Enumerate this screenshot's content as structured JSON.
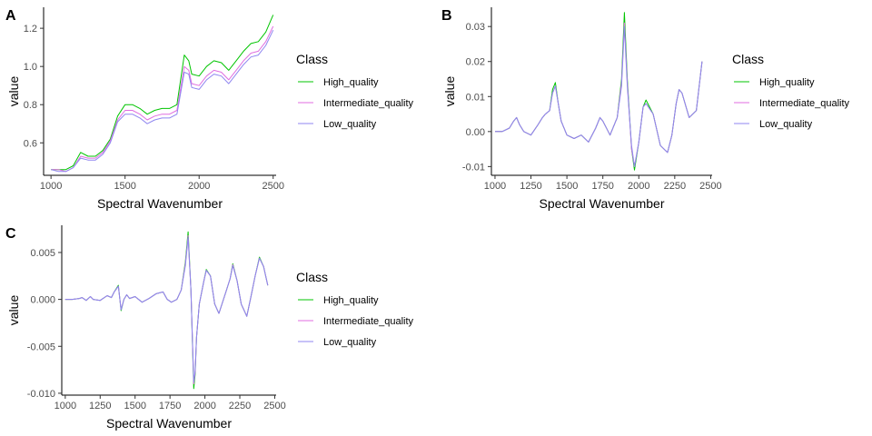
{
  "legend": {
    "title": "Class",
    "entries": [
      "High_quality",
      "Intermediate_quality",
      "Low_quality"
    ]
  },
  "colors": {
    "High_quality": "#00c400",
    "Intermediate_quality": "#e06ee0",
    "Low_quality": "#8f86f0"
  },
  "chart_data": [
    {
      "panel": "A",
      "type": "line",
      "xlabel": "Spectral Wavenumber",
      "ylabel": "value",
      "xlim": [
        950,
        2520
      ],
      "ylim": [
        0.43,
        1.31
      ],
      "xticks": [
        1000,
        1500,
        2000,
        2500
      ],
      "yticks": [
        0.6,
        0.8,
        1.0,
        1.2
      ],
      "ytick_labels": [
        "0.6",
        "0.8",
        "1.0",
        "1.2"
      ],
      "grid": false,
      "legend_position": "right",
      "series": [
        {
          "name": "High_quality",
          "x": [
            1000,
            1050,
            1100,
            1150,
            1200,
            1250,
            1300,
            1350,
            1400,
            1450,
            1500,
            1550,
            1600,
            1650,
            1700,
            1750,
            1800,
            1850,
            1900,
            1930,
            1950,
            2000,
            2050,
            2100,
            2150,
            2200,
            2250,
            2300,
            2350,
            2400,
            2450,
            2500
          ],
          "y": [
            0.46,
            0.46,
            0.46,
            0.48,
            0.55,
            0.53,
            0.53,
            0.56,
            0.62,
            0.74,
            0.8,
            0.8,
            0.78,
            0.75,
            0.77,
            0.78,
            0.78,
            0.8,
            1.06,
            1.03,
            0.96,
            0.95,
            1.0,
            1.03,
            1.02,
            0.98,
            1.03,
            1.08,
            1.12,
            1.13,
            1.18,
            1.27
          ]
        },
        {
          "name": "Intermediate_quality",
          "x": [
            1000,
            1050,
            1100,
            1150,
            1200,
            1250,
            1300,
            1350,
            1400,
            1450,
            1500,
            1550,
            1600,
            1650,
            1700,
            1750,
            1800,
            1850,
            1900,
            1930,
            1950,
            2000,
            2050,
            2100,
            2150,
            2200,
            2250,
            2300,
            2350,
            2400,
            2450,
            2500
          ],
          "y": [
            0.46,
            0.46,
            0.45,
            0.47,
            0.53,
            0.52,
            0.52,
            0.55,
            0.61,
            0.72,
            0.77,
            0.77,
            0.75,
            0.72,
            0.74,
            0.75,
            0.75,
            0.77,
            1.0,
            0.98,
            0.91,
            0.9,
            0.95,
            0.98,
            0.97,
            0.93,
            0.98,
            1.03,
            1.07,
            1.08,
            1.13,
            1.21
          ]
        },
        {
          "name": "Low_quality",
          "x": [
            1000,
            1050,
            1100,
            1150,
            1200,
            1250,
            1300,
            1350,
            1400,
            1450,
            1500,
            1550,
            1600,
            1650,
            1700,
            1750,
            1800,
            1850,
            1900,
            1930,
            1950,
            2000,
            2050,
            2100,
            2150,
            2200,
            2250,
            2300,
            2350,
            2400,
            2450,
            2500
          ],
          "y": [
            0.46,
            0.45,
            0.45,
            0.47,
            0.52,
            0.51,
            0.51,
            0.54,
            0.6,
            0.71,
            0.75,
            0.75,
            0.73,
            0.7,
            0.72,
            0.73,
            0.73,
            0.75,
            0.97,
            0.96,
            0.89,
            0.88,
            0.93,
            0.96,
            0.95,
            0.91,
            0.96,
            1.01,
            1.05,
            1.06,
            1.11,
            1.19
          ]
        }
      ]
    },
    {
      "panel": "B",
      "type": "line",
      "xlabel": "Spectral Wavenumber",
      "ylabel": "value",
      "xlim": [
        975,
        2510
      ],
      "ylim": [
        -0.0125,
        0.0355
      ],
      "xticks": [
        1000,
        1250,
        1500,
        1750,
        2000,
        2250,
        2500
      ],
      "yticks": [
        -0.01,
        0.0,
        0.01,
        0.02,
        0.03
      ],
      "ytick_labels": [
        "-0.01",
        "0.00",
        "0.01",
        "0.02",
        "0.03"
      ],
      "grid": false,
      "legend_position": "right",
      "series": [
        {
          "name": "High_quality",
          "x": [
            1000,
            1050,
            1100,
            1130,
            1150,
            1170,
            1200,
            1250,
            1300,
            1330,
            1350,
            1380,
            1400,
            1420,
            1440,
            1460,
            1500,
            1550,
            1600,
            1650,
            1700,
            1730,
            1750,
            1800,
            1850,
            1880,
            1900,
            1920,
            1950,
            1970,
            2000,
            2030,
            2050,
            2100,
            2150,
            2200,
            2230,
            2260,
            2280,
            2300,
            2350,
            2400,
            2440
          ],
          "y": [
            0.0,
            0.0,
            0.001,
            0.003,
            0.004,
            0.002,
            0.0,
            -0.001,
            0.002,
            0.004,
            0.005,
            0.006,
            0.012,
            0.014,
            0.008,
            0.003,
            -0.001,
            -0.002,
            -0.001,
            -0.003,
            0.001,
            0.004,
            0.003,
            -0.001,
            0.004,
            0.015,
            0.034,
            0.015,
            -0.005,
            -0.011,
            -0.003,
            0.007,
            0.009,
            0.005,
            -0.004,
            -0.006,
            -0.001,
            0.008,
            0.012,
            0.011,
            0.004,
            0.006,
            0.02
          ]
        },
        {
          "name": "Intermediate_quality",
          "x": [
            1000,
            1050,
            1100,
            1130,
            1150,
            1170,
            1200,
            1250,
            1300,
            1330,
            1350,
            1380,
            1400,
            1420,
            1440,
            1460,
            1500,
            1550,
            1600,
            1650,
            1700,
            1730,
            1750,
            1800,
            1850,
            1880,
            1900,
            1920,
            1950,
            1970,
            2000,
            2030,
            2050,
            2100,
            2150,
            2200,
            2230,
            2260,
            2280,
            2300,
            2350,
            2400,
            2440
          ],
          "y": [
            0.0,
            0.0,
            0.001,
            0.003,
            0.004,
            0.002,
            0.0,
            -0.001,
            0.002,
            0.004,
            0.005,
            0.006,
            0.011,
            0.013,
            0.008,
            0.003,
            -0.001,
            -0.002,
            -0.001,
            -0.003,
            0.001,
            0.004,
            0.003,
            -0.001,
            0.004,
            0.014,
            0.031,
            0.014,
            -0.005,
            -0.01,
            -0.003,
            0.007,
            0.008,
            0.005,
            -0.004,
            -0.006,
            -0.001,
            0.008,
            0.012,
            0.011,
            0.004,
            0.006,
            0.02
          ]
        },
        {
          "name": "Low_quality",
          "x": [
            1000,
            1050,
            1100,
            1130,
            1150,
            1170,
            1200,
            1250,
            1300,
            1330,
            1350,
            1380,
            1400,
            1420,
            1440,
            1460,
            1500,
            1550,
            1600,
            1650,
            1700,
            1730,
            1750,
            1800,
            1850,
            1880,
            1900,
            1920,
            1950,
            1970,
            2000,
            2030,
            2050,
            2100,
            2150,
            2200,
            2230,
            2260,
            2280,
            2300,
            2350,
            2400,
            2440
          ],
          "y": [
            0.0,
            0.0,
            0.001,
            0.003,
            0.004,
            0.002,
            0.0,
            -0.001,
            0.002,
            0.004,
            0.005,
            0.006,
            0.011,
            0.013,
            0.008,
            0.003,
            -0.001,
            -0.002,
            -0.001,
            -0.003,
            0.001,
            0.004,
            0.003,
            -0.001,
            0.004,
            0.013,
            0.03,
            0.013,
            -0.004,
            -0.01,
            -0.003,
            0.007,
            0.008,
            0.005,
            -0.004,
            -0.006,
            -0.001,
            0.008,
            0.012,
            0.011,
            0.004,
            0.006,
            0.02
          ]
        }
      ]
    },
    {
      "panel": "C",
      "type": "line",
      "xlabel": "Spectral Wavenumber",
      "ylabel": "value",
      "xlim": [
        975,
        2510
      ],
      "ylim": [
        -0.0102,
        0.0079
      ],
      "xticks": [
        1000,
        1250,
        1500,
        1750,
        2000,
        2250,
        2500
      ],
      "yticks": [
        -0.01,
        -0.005,
        0.0,
        0.005
      ],
      "ytick_labels": [
        "-0.010",
        "-0.005",
        "0.000",
        "0.005"
      ],
      "grid": false,
      "legend_position": "right",
      "series": [
        {
          "name": "High_quality",
          "x": [
            1000,
            1050,
            1100,
            1120,
            1150,
            1180,
            1200,
            1250,
            1300,
            1330,
            1350,
            1380,
            1400,
            1420,
            1440,
            1460,
            1500,
            1550,
            1600,
            1650,
            1700,
            1730,
            1760,
            1800,
            1830,
            1860,
            1880,
            1900,
            1920,
            1930,
            1940,
            1960,
            1990,
            2010,
            2040,
            2070,
            2100,
            2150,
            2180,
            2200,
            2230,
            2260,
            2300,
            2330,
            2360,
            2390,
            2420,
            2450
          ],
          "y": [
            0.0,
            0.0,
            0.0001,
            0.0002,
            -0.0001,
            0.0003,
            0.0,
            -0.0001,
            0.0004,
            0.0002,
            0.0008,
            0.0015,
            -0.0012,
            0.0,
            0.0005,
            0.0001,
            0.0003,
            -0.0003,
            0.0001,
            0.0006,
            0.0008,
            0.0,
            -0.0003,
            0.0,
            0.001,
            0.004,
            0.0072,
            0.001,
            -0.0095,
            -0.008,
            -0.004,
            -0.0005,
            0.0018,
            0.0032,
            0.0025,
            -0.0005,
            -0.0015,
            0.0008,
            0.0022,
            0.0038,
            0.002,
            -0.0005,
            -0.0018,
            0.0003,
            0.0025,
            0.0045,
            0.0035,
            0.0015
          ]
        },
        {
          "name": "Intermediate_quality",
          "x": [
            1000,
            1050,
            1100,
            1120,
            1150,
            1180,
            1200,
            1250,
            1300,
            1330,
            1350,
            1380,
            1400,
            1420,
            1440,
            1460,
            1500,
            1550,
            1600,
            1650,
            1700,
            1730,
            1760,
            1800,
            1830,
            1860,
            1880,
            1900,
            1920,
            1930,
            1940,
            1960,
            1990,
            2010,
            2040,
            2070,
            2100,
            2150,
            2180,
            2200,
            2230,
            2260,
            2300,
            2330,
            2360,
            2390,
            2420,
            2450
          ],
          "y": [
            0.0,
            0.0,
            0.0001,
            0.0002,
            -0.0001,
            0.0003,
            0.0,
            -0.0001,
            0.0004,
            0.0002,
            0.0008,
            0.0014,
            -0.0011,
            0.0,
            0.0005,
            0.0001,
            0.0003,
            -0.0003,
            0.0001,
            0.0006,
            0.0008,
            0.0,
            -0.0003,
            0.0,
            0.001,
            0.0038,
            0.0068,
            0.001,
            -0.009,
            -0.0078,
            -0.004,
            -0.0005,
            0.0018,
            0.0031,
            0.0025,
            -0.0005,
            -0.0015,
            0.0008,
            0.0022,
            0.0037,
            0.002,
            -0.0005,
            -0.0018,
            0.0003,
            0.0025,
            0.0044,
            0.0035,
            0.0015
          ]
        },
        {
          "name": "Low_quality",
          "x": [
            1000,
            1050,
            1100,
            1120,
            1150,
            1180,
            1200,
            1250,
            1300,
            1330,
            1350,
            1380,
            1400,
            1420,
            1440,
            1460,
            1500,
            1550,
            1600,
            1650,
            1700,
            1730,
            1760,
            1800,
            1830,
            1860,
            1880,
            1900,
            1920,
            1930,
            1940,
            1960,
            1990,
            2010,
            2040,
            2070,
            2100,
            2150,
            2180,
            2200,
            2230,
            2260,
            2300,
            2330,
            2360,
            2390,
            2420,
            2450
          ],
          "y": [
            0.0,
            0.0,
            0.0001,
            0.0002,
            -0.0001,
            0.0003,
            0.0,
            -0.0001,
            0.0004,
            0.0002,
            0.0008,
            0.0014,
            -0.0011,
            0.0,
            0.0005,
            0.0001,
            0.0003,
            -0.0003,
            0.0001,
            0.0006,
            0.0008,
            0.0,
            -0.0003,
            0.0,
            0.001,
            0.0036,
            0.0066,
            0.001,
            -0.0088,
            -0.0076,
            -0.004,
            -0.0005,
            0.0018,
            0.0031,
            0.0025,
            -0.0005,
            -0.0015,
            0.0008,
            0.0022,
            0.0036,
            0.002,
            -0.0005,
            -0.0018,
            0.0003,
            0.0025,
            0.0044,
            0.0035,
            0.0015
          ]
        }
      ]
    }
  ]
}
